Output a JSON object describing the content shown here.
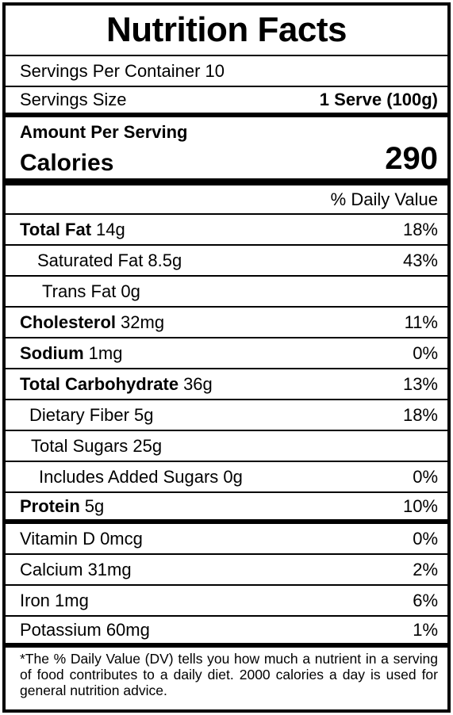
{
  "title": "Nutrition Facts",
  "servings_per_container": "Servings Per Container 10",
  "serving_size_label": "Servings Size",
  "serving_size_value": "1 Serve (100g)",
  "amount_per_serving": "Amount Per Serving",
  "calories_label": "Calories",
  "calories_value": "290",
  "daily_value_header": "% Daily Value",
  "nutrients": [
    {
      "name": "Total Fat",
      "amount": "14g",
      "dv": "18%"
    },
    {
      "name": "Saturated Fat 8.5g",
      "amount": "",
      "dv": "43%"
    },
    {
      "name": "Trans Fat 0g",
      "amount": "",
      "dv": ""
    },
    {
      "name": "Cholesterol",
      "amount": "32mg",
      "dv": "11%"
    },
    {
      "name": "Sodium",
      "amount": "1mg",
      "dv": "0%"
    },
    {
      "name": "Total Carbohydrate",
      "amount": "36g",
      "dv": "13%"
    },
    {
      "name": "Dietary Fiber 5g",
      "amount": "",
      "dv": "18%"
    },
    {
      "name": "Total Sugars 25g",
      "amount": "",
      "dv": ""
    },
    {
      "name": "Includes Added Sugars 0g",
      "amount": "",
      "dv": "0%"
    },
    {
      "name": "Protein",
      "amount": "5g",
      "dv": "10%"
    }
  ],
  "vitamins": [
    {
      "name": "Vitamin D 0mcg",
      "dv": "0%"
    },
    {
      "name": "Calcium 31mg",
      "dv": "2%"
    },
    {
      "name": "Iron 1mg",
      "dv": "6%"
    },
    {
      "name": "Potassium 60mg",
      "dv": "1%"
    }
  ],
  "footnote": "*The % Daily Value (DV) tells you how much a nutrient in a serving of food contributes to a daily diet. 2000 calories a day is used for general nutrition advice."
}
